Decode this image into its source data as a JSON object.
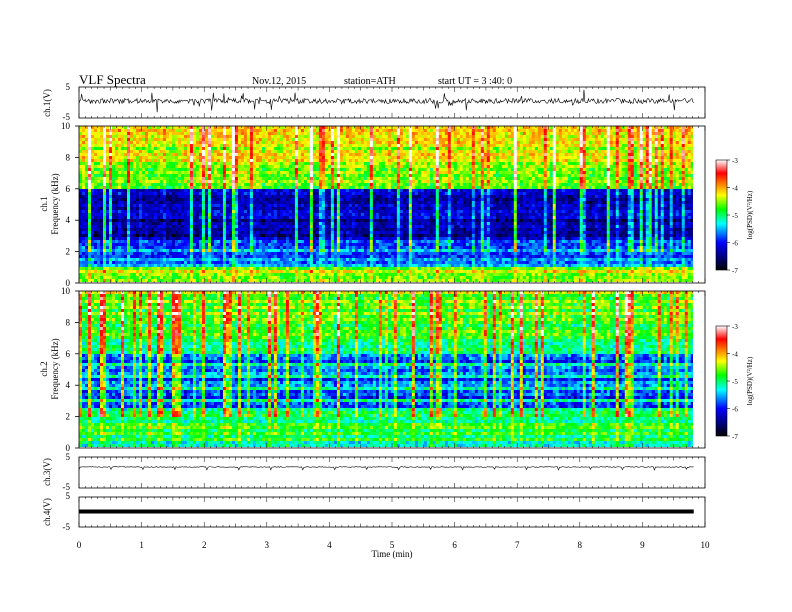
{
  "header": {
    "title": "VLF  Spectra",
    "date": "Nov.12, 2015",
    "station": "station=ATH",
    "start": "start  UT =  3 :40: 0"
  },
  "chart_data": [
    {
      "type": "line",
      "name": "ch1-waveform",
      "ylabel": "ch.1(V)",
      "ylim": [
        -5,
        5
      ],
      "y_ticks": [
        "5",
        "-5"
      ]
    },
    {
      "type": "heatmap",
      "name": "ch1-spectrogram",
      "ylabel": "Frequency  (kHz)",
      "channel_label": "ch.1",
      "ylim": [
        0,
        10
      ],
      "y_ticks": [
        "0",
        "2",
        "4",
        "6",
        "8",
        "10"
      ],
      "colorbar": {
        "label": "log(PSD)(V²/Hz)",
        "range": [
          -7,
          -3
        ],
        "ticks": [
          "-3",
          "-4",
          "-5",
          "-6",
          "-7"
        ]
      }
    },
    {
      "type": "heatmap",
      "name": "ch2-spectrogram",
      "ylabel": "Frequency  (kHz)",
      "channel_label": "ch.2",
      "ylim": [
        0,
        10
      ],
      "y_ticks": [
        "0",
        "2",
        "4",
        "6",
        "8",
        "10"
      ],
      "colorbar": {
        "label": "log(PSD)(V²/Hz)",
        "range": [
          -7,
          -3
        ],
        "ticks": [
          "-3",
          "-4",
          "-5",
          "-6",
          "-7"
        ]
      }
    },
    {
      "type": "line",
      "name": "ch3-waveform",
      "ylabel": "ch.3(V)",
      "ylim": [
        -5,
        5
      ],
      "y_ticks": [
        "5",
        "-5"
      ]
    },
    {
      "type": "line",
      "name": "ch4-waveform",
      "ylabel": "ch.4(V)",
      "ylim": [
        -5,
        5
      ],
      "y_ticks": [
        "5",
        "-5"
      ]
    }
  ],
  "x_axis": {
    "label": "Time  (min)",
    "range": [
      0,
      10
    ],
    "data_end": 9.82,
    "ticks": [
      "0",
      "1",
      "2",
      "3",
      "4",
      "5",
      "6",
      "7",
      "8",
      "9",
      "10"
    ]
  },
  "colors": {
    "spectrum_scale": [
      "#000080",
      "#0000ff",
      "#00ffff",
      "#00ff00",
      "#ffff00",
      "#ff8000",
      "#ff0000",
      "#ffffff"
    ]
  }
}
